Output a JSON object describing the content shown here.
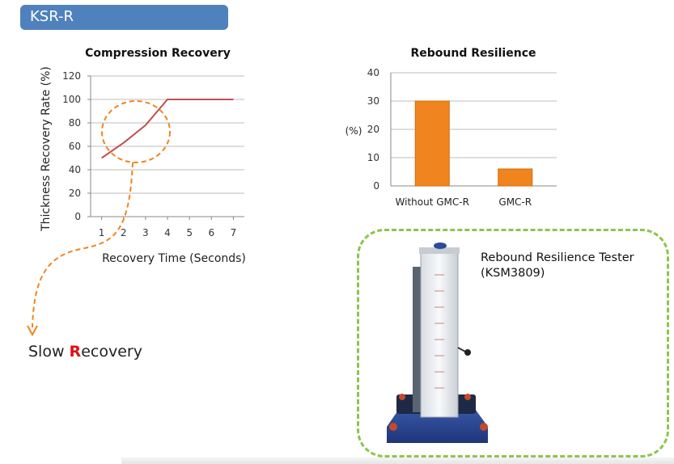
{
  "header": {
    "title": "KSR-R"
  },
  "chart_data": [
    {
      "type": "line",
      "title": "Compression Recovery",
      "xlabel": "Recovery Time (Seconds)",
      "ylabel": "Thickness Recovery Rate (%)",
      "x": [
        1,
        2,
        3,
        4,
        5,
        6,
        7
      ],
      "y": [
        50,
        63,
        78,
        100,
        100,
        100,
        100
      ],
      "xlim": [
        0.5,
        7.5
      ],
      "ylim": [
        0,
        120
      ],
      "x_ticks": [
        "1",
        "2",
        "3",
        "4",
        "5",
        "6",
        "7"
      ],
      "y_ticks": [
        "0",
        "20",
        "40",
        "60",
        "80",
        "100",
        "120"
      ],
      "grid": true,
      "line_color": "#c0504d"
    },
    {
      "type": "bar",
      "title": "Rebound Resilience",
      "categories": [
        "Without GMC-R",
        "GMC-R"
      ],
      "values": [
        30,
        6
      ],
      "ylabel": "(%)",
      "ylim": [
        0,
        40
      ],
      "y_ticks": [
        "0",
        "10",
        "20",
        "30",
        "40"
      ],
      "grid": true,
      "bar_color": "#f0841e"
    }
  ],
  "annotation": {
    "prefix": "Slow ",
    "highlight": "R",
    "suffix": "ecovery",
    "highlight_color": "#e01010"
  },
  "tester": {
    "label_line1": "Rebound Resilience Tester",
    "label_line2": "(KSM3809)"
  }
}
